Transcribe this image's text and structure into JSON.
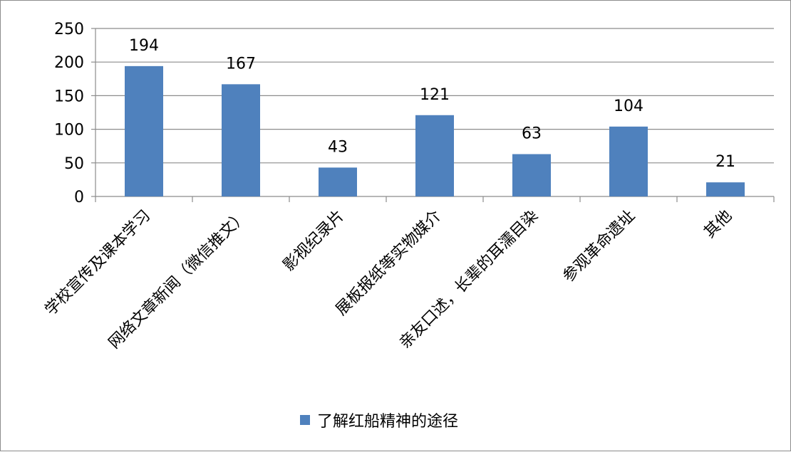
{
  "chart_data": {
    "type": "bar",
    "categories": [
      "学校宣传及课本学习",
      "网络文章新闻（微信推文）",
      "影视纪录片",
      "展板报纸等实物媒介",
      "亲友口述，长辈的耳濡目染",
      "参观革命遗址",
      "其他"
    ],
    "series": [
      {
        "name": "了解红船精神的途径",
        "values": [
          194,
          167,
          43,
          121,
          63,
          104,
          21
        ],
        "color": "#4f81bd"
      }
    ],
    "yticks": [
      "0",
      "50",
      "100",
      "150",
      "200",
      "250"
    ],
    "ylim": [
      0,
      250
    ],
    "grid": true,
    "legend": "bottom",
    "data_labels": [
      "194",
      "167",
      "43",
      "121",
      "63",
      "104",
      "21"
    ],
    "title": "",
    "xlabel": "",
    "ylabel": ""
  }
}
